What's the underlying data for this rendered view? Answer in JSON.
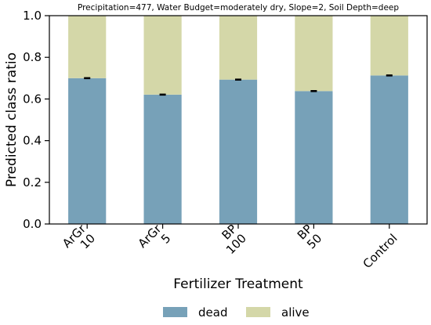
{
  "chart_data": {
    "type": "bar",
    "stacked": true,
    "title": "Precipitation=477, Water Budget=moderately dry, Slope=2, Soil Depth=deep",
    "xlabel": "Fertilizer Treatment",
    "ylabel": "Predicted class ratio",
    "ylim": [
      0,
      1.0
    ],
    "yticks": [
      "0.0",
      "0.2",
      "0.4",
      "0.6",
      "0.8",
      "1.0"
    ],
    "categories": [
      "ArGr\n10",
      "ArGr\n5",
      "BP\n100",
      "BP\n50",
      "Control"
    ],
    "series": [
      {
        "name": "dead",
        "color": "#77a1b8",
        "values": [
          0.7,
          0.621,
          0.693,
          0.638,
          0.713
        ],
        "error": [
          0.002,
          0.002,
          0.002,
          0.002,
          0.002
        ]
      },
      {
        "name": "alive",
        "color": "#d4d7a8",
        "values": [
          0.3,
          0.379,
          0.307,
          0.362,
          0.287
        ]
      }
    ],
    "grid": false,
    "legend": "bottom-center"
  }
}
